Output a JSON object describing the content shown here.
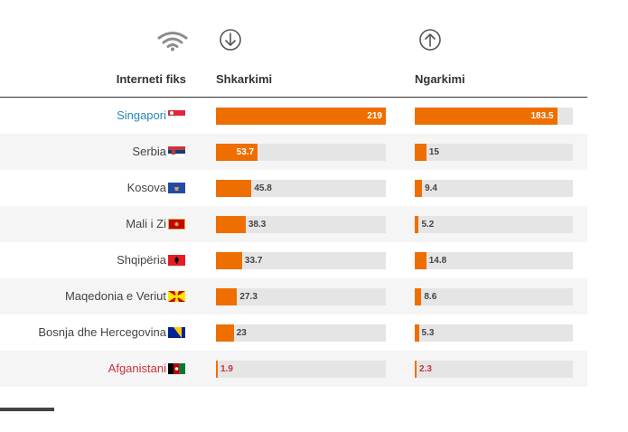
{
  "header": {
    "icons": [
      "wifi-icon",
      "download-icon",
      "upload-icon"
    ],
    "col_label": "Interneti fiks",
    "col_download": "Shkarkimi",
    "col_upload": "Ngarkimi"
  },
  "colors": {
    "bar": "#ee6f00",
    "track": "#e5e5e5",
    "highlight_top": "#2a88b5",
    "highlight_bottom": "#c8323c"
  },
  "chart_data": {
    "type": "bar",
    "orientation": "horizontal",
    "categories": [
      "Singapori",
      "Serbia",
      "Kosova",
      "Mali i Zi",
      "Shqipëria",
      "Maqedonia e Veriut",
      "Bosnja dhe Hercegovina",
      "Afganistani"
    ],
    "series": [
      {
        "name": "Shkarkimi",
        "values": [
          219,
          53.7,
          45.8,
          38.3,
          33.7,
          27.3,
          23,
          1.9
        ],
        "labels": [
          "219",
          "53.7",
          "45.8",
          "38.3",
          "33.7",
          "27.3",
          "23",
          "1.9"
        ],
        "max": 219
      },
      {
        "name": "Ngarkimi",
        "values": [
          183.5,
          15,
          9.4,
          5.2,
          14.8,
          8.6,
          5.3,
          2.3
        ],
        "labels": [
          "183.5",
          "15",
          "9.4",
          "5.2",
          "14.8",
          "8.6",
          "5.3",
          "2.3"
        ],
        "max": 219
      }
    ],
    "flags": [
      "singapore-flag",
      "serbia-flag",
      "kosovo-flag",
      "montenegro-flag",
      "albania-flag",
      "north-macedonia-flag",
      "bosnia-flag",
      "afghanistan-flag"
    ]
  }
}
